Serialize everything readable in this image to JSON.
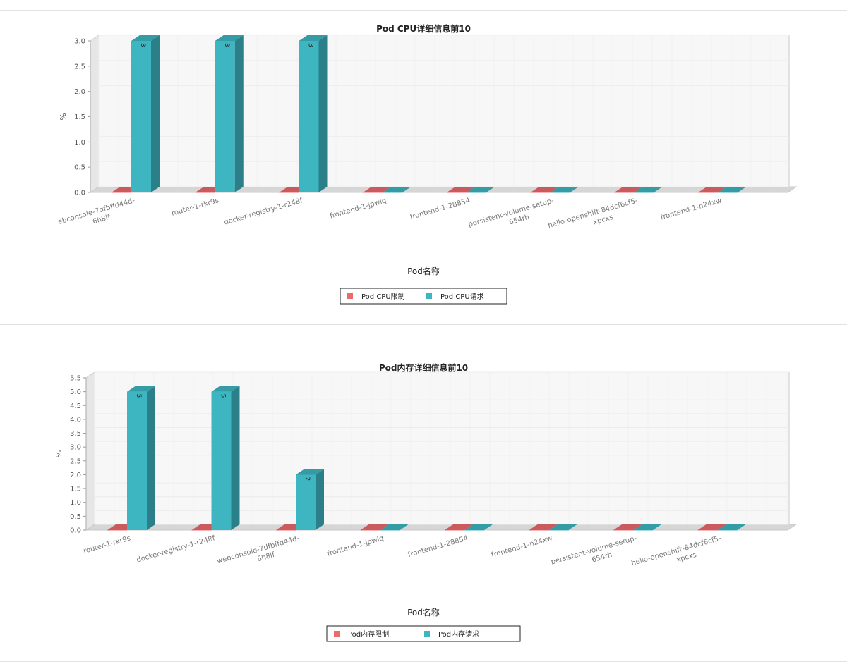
{
  "chart_data": [
    {
      "type": "bar",
      "title": "Pod CPU详细信息前10",
      "xlabel": "Pod名称",
      "ylabel": "%",
      "ylim": [
        0,
        3.0
      ],
      "ytick_step": 0.5,
      "categories": [
        "ebconsole-7dfbffd44d-\n6h8lf",
        "router-1-rkr9s",
        "docker-registry-1-r248f",
        "frontend-1-jpwlq",
        "frontend-1-28854",
        "persistent-volume-setup-\n654rh",
        "hello-openshift-84dcf6cf5-\nxpcxs",
        "frontend-1-n24xw"
      ],
      "series": [
        {
          "name": "Pod CPU限制",
          "values": [
            0,
            0,
            0,
            0,
            0,
            0,
            0,
            0
          ],
          "color": "#ec6a6e"
        },
        {
          "name": "Pod CPU请求",
          "values": [
            3,
            3,
            3,
            0,
            0,
            0,
            0,
            0
          ],
          "color": "#3eb6c2"
        }
      ],
      "data_labels": [
        "3",
        "3",
        "3",
        "",
        "",
        "",
        "",
        ""
      ],
      "legend_position": "bottom-center",
      "grid": true,
      "bar_style": "3d"
    },
    {
      "type": "bar",
      "title": "Pod内存详细信息前10",
      "xlabel": "Pod名称",
      "ylabel": "%",
      "ylim": [
        0,
        5.5
      ],
      "ytick_step": 0.5,
      "categories": [
        "router-1-rkr9s",
        "docker-registry-1-r248f",
        "webconsole-7dfbffd44d-\n6h8lf",
        "frontend-1-jpwlq",
        "frontend-1-28854",
        "frontend-1-n24xw",
        "persistent-volume-setup-\n654rh",
        "hello-openshift-84dcf6cf5-\nxpcxs"
      ],
      "series": [
        {
          "name": "Pod内存限制",
          "values": [
            0,
            0,
            0,
            0,
            0,
            0,
            0,
            0
          ],
          "color": "#ec6a6e"
        },
        {
          "name": "Pod内存请求",
          "values": [
            5,
            5,
            2,
            0,
            0,
            0,
            0,
            0
          ],
          "color": "#3eb6c2"
        }
      ],
      "data_labels": [
        "5",
        "5",
        "2",
        "",
        "",
        "",
        "",
        ""
      ],
      "legend_position": "bottom-center",
      "grid": true,
      "bar_style": "3d"
    }
  ]
}
